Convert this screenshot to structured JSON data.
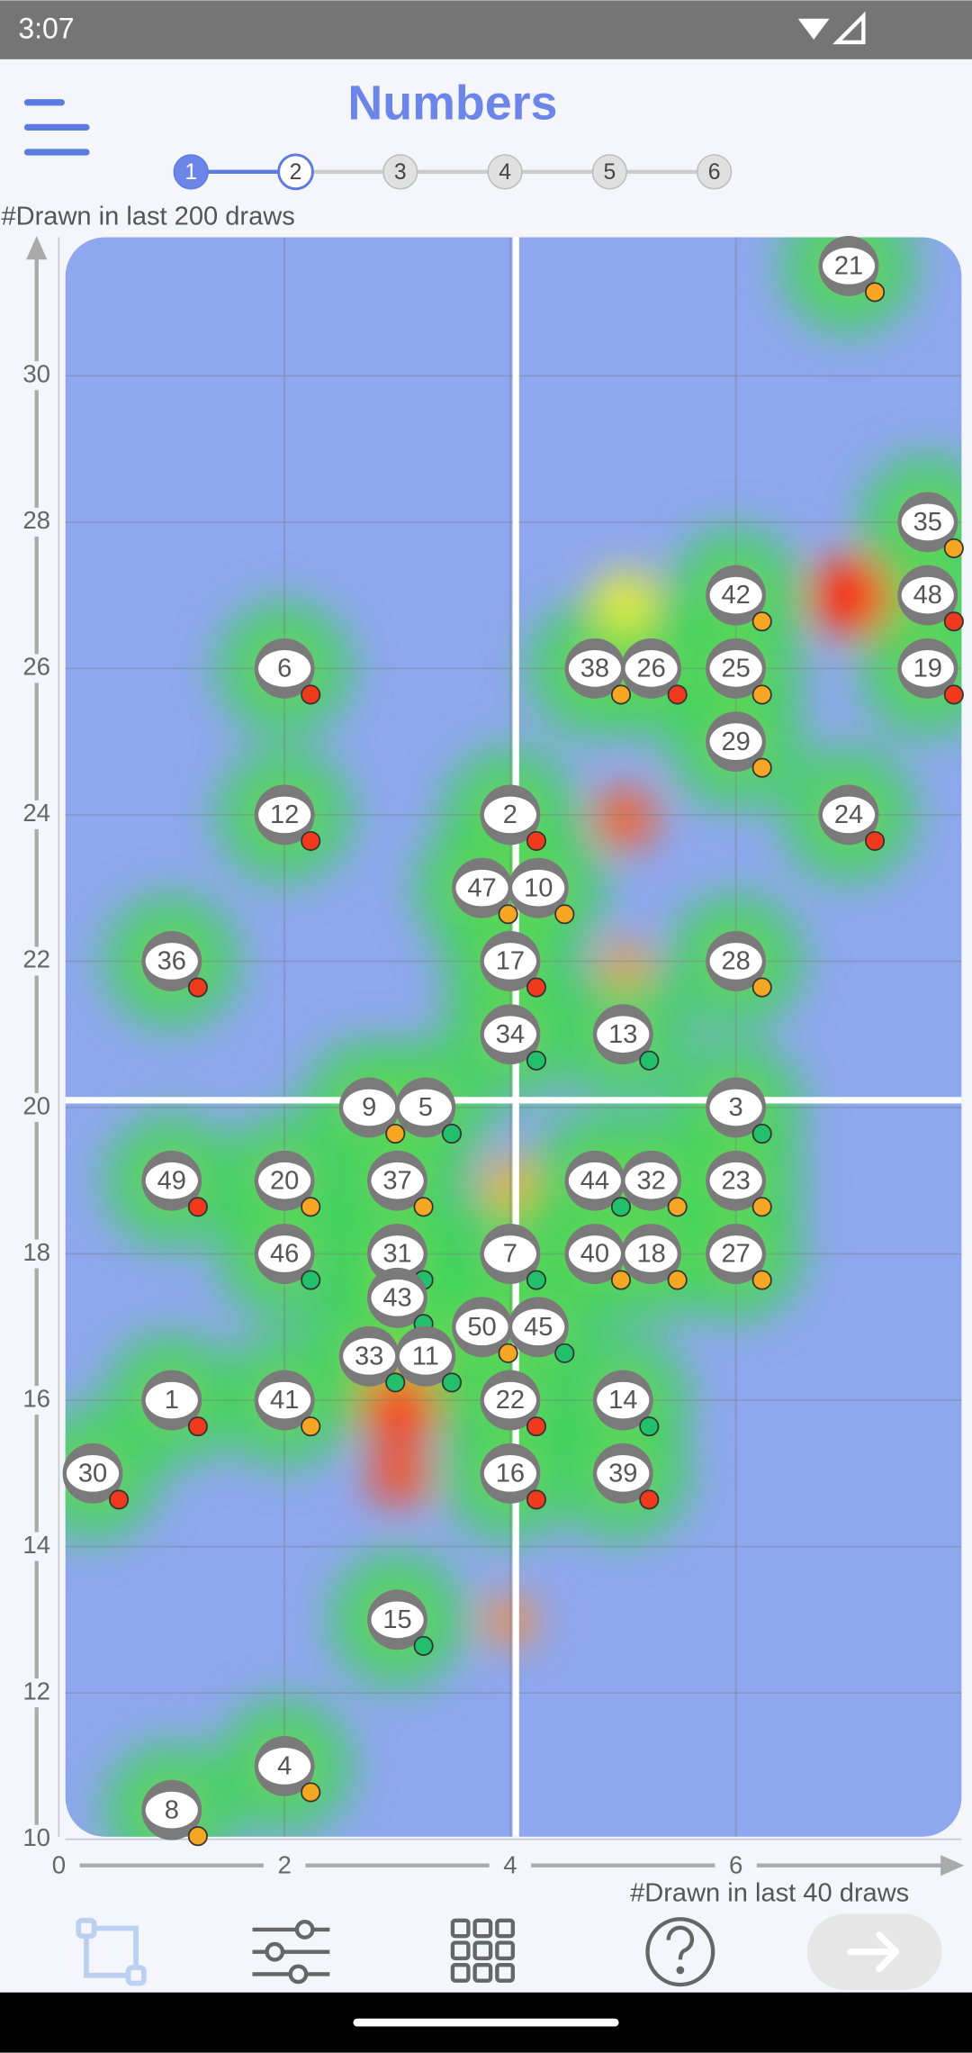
{
  "status_time": "3:07",
  "app_title": "Numbers",
  "steps": [
    1,
    2,
    3,
    4,
    5,
    6
  ],
  "active_step": 1,
  "chart_data": {
    "type": "scatter",
    "xlabel": "#Drawn in last 40 draws",
    "ylabel": "#Drawn in last 200 draws",
    "xlim": [
      0,
      8
    ],
    "ylim": [
      10,
      32
    ],
    "xticks": [
      0,
      2,
      4,
      6
    ],
    "yticks": [
      10,
      12,
      14,
      16,
      18,
      20,
      22,
      24,
      26,
      28,
      30
    ],
    "grid": true,
    "reference_lines": {
      "x": 4.05,
      "y": 20.1
    },
    "labels": [
      21,
      35,
      48,
      19,
      42,
      25,
      29,
      38,
      26,
      6,
      12,
      2,
      24,
      47,
      10,
      36,
      17,
      28,
      34,
      13,
      9,
      5,
      3,
      49,
      20,
      37,
      44,
      32,
      23,
      46,
      31,
      7,
      40,
      18,
      27,
      43,
      50,
      45,
      33,
      11,
      1,
      41,
      22,
      14,
      30,
      16,
      39,
      15,
      4,
      8
    ],
    "x": [
      7,
      7.7,
      7.7,
      7.7,
      6,
      6,
      6,
      4.75,
      5.25,
      2,
      2,
      4,
      7,
      3.75,
      4.25,
      1,
      4,
      6,
      4,
      5,
      2.75,
      3.25,
      6,
      1,
      2,
      3,
      4.75,
      5.25,
      6,
      2,
      3,
      4,
      4.75,
      5.25,
      6,
      3,
      3.75,
      4.25,
      2.75,
      3.25,
      1,
      2,
      4,
      5,
      0.3,
      4,
      5,
      3,
      2,
      1
    ],
    "y": [
      31.5,
      28,
      27,
      26,
      27,
      26,
      25,
      26,
      26,
      26,
      24,
      24,
      24,
      23,
      23,
      22,
      22,
      22,
      21,
      21,
      20,
      20,
      20,
      19,
      19,
      19,
      19,
      19,
      19,
      18,
      18,
      18,
      18,
      18,
      18,
      17.4,
      17,
      17,
      16.6,
      16.6,
      16,
      16,
      16,
      16,
      15,
      15,
      15,
      13,
      11,
      10.4
    ],
    "colors": [
      "#f5a623",
      "#f5a623",
      "#f03a1e",
      "#f03a1e",
      "#f5a623",
      "#f5a623",
      "#f5a623",
      "#f5a623",
      "#f03a1e",
      "#f03a1e",
      "#f03a1e",
      "#f03a1e",
      "#f03a1e",
      "#f5a623",
      "#f5a623",
      "#f03a1e",
      "#f03a1e",
      "#f5a623",
      "#22c06b",
      "#22c06b",
      "#f5a623",
      "#22c06b",
      "#22c06b",
      "#f03a1e",
      "#f5a623",
      "#f5a623",
      "#22c06b",
      "#f5a623",
      "#f5a623",
      "#22c06b",
      "#22c06b",
      "#22c06b",
      "#f5a623",
      "#f5a623",
      "#f5a623",
      "#22c06b",
      "#f5a623",
      "#22c06b",
      "#22c06b",
      "#22c06b",
      "#f03a1e",
      "#f5a623",
      "#f03a1e",
      "#22c06b",
      "#f03a1e",
      "#f03a1e",
      "#f03a1e",
      "#22c06b",
      "#f5a623",
      "#f5a623"
    ]
  }
}
